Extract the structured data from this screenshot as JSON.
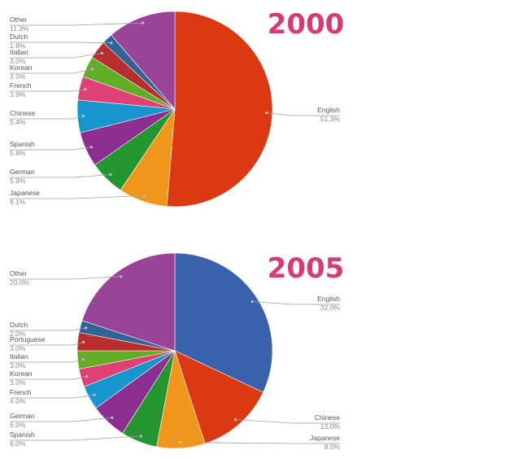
{
  "title_color": "#d63c72",
  "chart_data": [
    {
      "type": "pie",
      "title": "2000",
      "slices": [
        {
          "label": "English",
          "value": 51.3,
          "pct_text": "51.3%",
          "color": "#dc3912"
        },
        {
          "label": "Japanese",
          "value": 8.1,
          "pct_text": "8.1%",
          "color": "#f1961a"
        },
        {
          "label": "German",
          "value": 5.9,
          "pct_text": "5.9%",
          "color": "#23962f"
        },
        {
          "label": "Spanish",
          "value": 5.8,
          "pct_text": "5.8%",
          "color": "#8b2e8f"
        },
        {
          "label": "Chinese",
          "value": 5.4,
          "pct_text": "5.4%",
          "color": "#1596cc"
        },
        {
          "label": "French",
          "value": 3.9,
          "pct_text": "3.9%",
          "color": "#df4174"
        },
        {
          "label": "Korean",
          "value": 3.5,
          "pct_text": "3.5%",
          "color": "#62ac27"
        },
        {
          "label": "Italian",
          "value": 3.0,
          "pct_text": "3.0%",
          "color": "#b82e2e"
        },
        {
          "label": "Dutch",
          "value": 1.8,
          "pct_text": "1.8%",
          "color": "#316395"
        },
        {
          "label": "Other",
          "value": 11.3,
          "pct_text": "11.3%",
          "color": "#994499"
        }
      ]
    },
    {
      "type": "pie",
      "title": "2005",
      "slices": [
        {
          "label": "English",
          "value": 32.0,
          "pct_text": "32.0%",
          "color": "#3a61ab"
        },
        {
          "label": "Chinese",
          "value": 13.0,
          "pct_text": "13.0%",
          "color": "#dc3912"
        },
        {
          "label": "Japanese",
          "value": 8.0,
          "pct_text": "8.0%",
          "color": "#f1961a"
        },
        {
          "label": "Spanish",
          "value": 6.0,
          "pct_text": "6.0%",
          "color": "#23962f"
        },
        {
          "label": "German",
          "value": 6.0,
          "pct_text": "6.0%",
          "color": "#8b2e8f"
        },
        {
          "label": "French",
          "value": 4.0,
          "pct_text": "4.0%",
          "color": "#1596cc"
        },
        {
          "label": "Korean",
          "value": 3.0,
          "pct_text": "3.0%",
          "color": "#df4174"
        },
        {
          "label": "Italian",
          "value": 3.0,
          "pct_text": "3.0%",
          "color": "#62ac27"
        },
        {
          "label": "Portuguese",
          "value": 3.0,
          "pct_text": "3.0%",
          "color": "#b82e2e"
        },
        {
          "label": "Dutch",
          "value": 2.0,
          "pct_text": "2.0%",
          "color": "#316395"
        },
        {
          "label": "Other",
          "value": 20.0,
          "pct_text": "20.0%",
          "color": "#994499"
        }
      ]
    }
  ]
}
